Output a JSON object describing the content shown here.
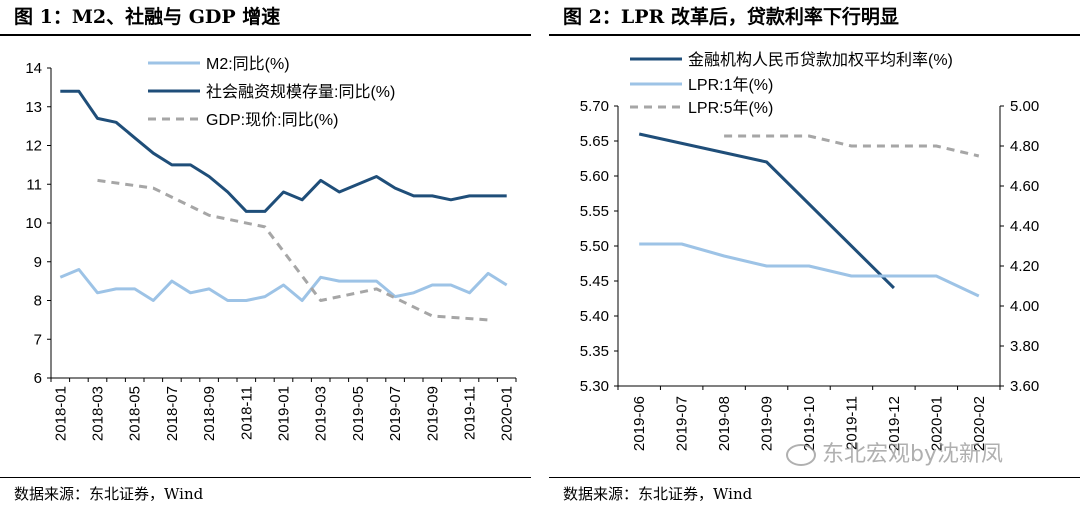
{
  "left": {
    "title": "图 1：M2、社融与 GDP 增速",
    "source": "数据来源：东北证券，Wind",
    "chart_data": {
      "type": "line",
      "categories": [
        "2018-01",
        "2018-02",
        "2018-03",
        "2018-04",
        "2018-05",
        "2018-06",
        "2018-07",
        "2018-08",
        "2018-09",
        "2018-10",
        "2018-11",
        "2018-12",
        "2019-01",
        "2019-02",
        "2019-03",
        "2019-04",
        "2019-05",
        "2019-06",
        "2019-07",
        "2019-08",
        "2019-09",
        "2019-10",
        "2019-11",
        "2019-12",
        "2020-01"
      ],
      "tick_labels": [
        "2018-01",
        "2018-03",
        "2018-05",
        "2018-07",
        "2018-09",
        "2018-11",
        "2019-01",
        "2019-03",
        "2019-05",
        "2019-07",
        "2019-09",
        "2019-11",
        "2020-01"
      ],
      "ylim": [
        6,
        14
      ],
      "yticks": [
        "6",
        "7",
        "8",
        "9",
        "10",
        "11",
        "12",
        "13",
        "14"
      ],
      "series": [
        {
          "name": "M2:同比(%)",
          "color": "#9dc3e6",
          "dash": "",
          "values": [
            8.6,
            8.8,
            8.2,
            8.3,
            8.3,
            8.0,
            8.5,
            8.2,
            8.3,
            8.0,
            8.0,
            8.1,
            8.4,
            8.0,
            8.6,
            8.5,
            8.5,
            8.5,
            8.1,
            8.2,
            8.4,
            8.4,
            8.2,
            8.7,
            8.4
          ]
        },
        {
          "name": "社会融资规模存量:同比(%)",
          "color": "#1f4e79",
          "dash": "",
          "values": [
            13.4,
            13.4,
            12.7,
            12.6,
            12.2,
            11.8,
            11.5,
            11.5,
            11.2,
            10.8,
            10.3,
            10.3,
            10.8,
            10.6,
            11.1,
            10.8,
            11.0,
            11.2,
            10.9,
            10.7,
            10.7,
            10.6,
            10.7,
            10.7,
            10.7
          ]
        },
        {
          "name": "GDP:现价:同比(%)",
          "color": "#a6a6a6",
          "dash": "8,6",
          "values": [
            null,
            null,
            11.1,
            null,
            null,
            10.9,
            null,
            null,
            10.2,
            null,
            null,
            9.9,
            null,
            null,
            8.0,
            null,
            null,
            8.3,
            null,
            null,
            7.6,
            null,
            null,
            7.5,
            null
          ]
        }
      ]
    }
  },
  "right": {
    "title": "图 2：LPR 改革后，贷款利率下行明显",
    "source": "数据来源：东北证券，Wind",
    "chart_data": {
      "type": "line",
      "categories": [
        "2019-06",
        "2019-07",
        "2019-08",
        "2019-09",
        "2019-10",
        "2019-11",
        "2019-12",
        "2020-01",
        "2020-02"
      ],
      "ylim_left": [
        5.3,
        5.7
      ],
      "ylim_right": [
        3.6,
        5.0
      ],
      "yticks_left": [
        "5.30",
        "5.35",
        "5.40",
        "5.45",
        "5.50",
        "5.55",
        "5.60",
        "5.65",
        "5.70"
      ],
      "yticks_right": [
        "3.60",
        "3.80",
        "4.00",
        "4.20",
        "4.40",
        "4.60",
        "4.80",
        "5.00"
      ],
      "series": [
        {
          "name": "金融机构人民币贷款加权平均利率(%)",
          "axis": "left",
          "color": "#1f4e79",
          "dash": "",
          "values": [
            5.66,
            null,
            null,
            5.62,
            null,
            null,
            5.44,
            null,
            null
          ]
        },
        {
          "name": "LPR:1年(%)",
          "axis": "right",
          "color": "#9dc3e6",
          "dash": "",
          "values": [
            4.31,
            4.31,
            4.25,
            4.2,
            4.2,
            4.15,
            4.15,
            4.15,
            4.05
          ]
        },
        {
          "name": "LPR:5年(%)",
          "axis": "right",
          "color": "#a6a6a6",
          "dash": "8,6",
          "values": [
            null,
            null,
            4.85,
            4.85,
            4.85,
            4.8,
            4.8,
            4.8,
            4.75
          ]
        }
      ]
    }
  },
  "watermark": "东北宏观by沈新凤"
}
